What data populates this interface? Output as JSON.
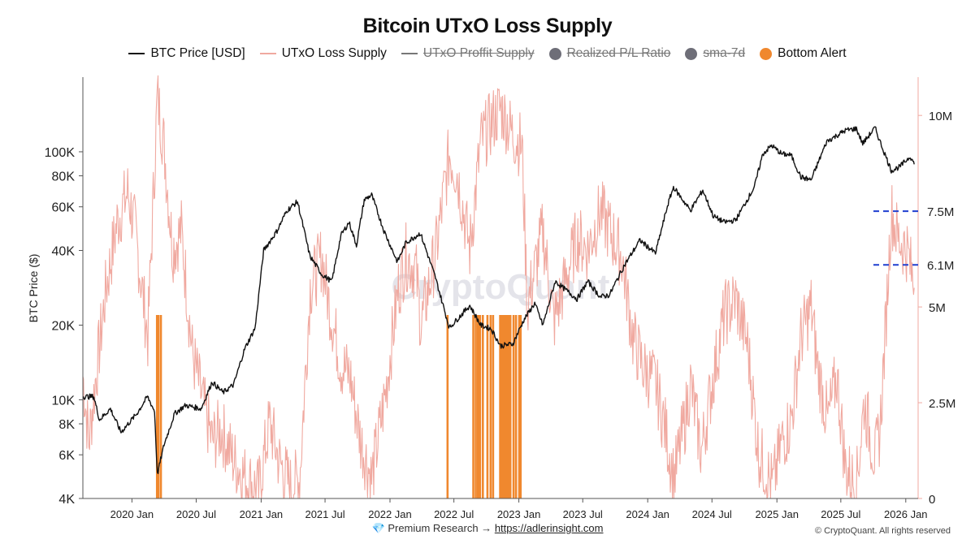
{
  "title": "Bitcoin UTxO Loss Supply",
  "legend": [
    {
      "label": "BTC Price [USD]",
      "kind": "line",
      "color": "#111111",
      "active": true
    },
    {
      "label": "UTxO Loss Supply",
      "kind": "line",
      "color": "#f0a9a0",
      "active": true
    },
    {
      "label": "UTxO Proffit Supply",
      "kind": "line",
      "color": "#777777",
      "active": false
    },
    {
      "label": "Realized P/L Ratio",
      "kind": "dot",
      "color": "#6e6e78",
      "active": false
    },
    {
      "label": "sma-7d",
      "kind": "dot",
      "color": "#6e6e78",
      "active": false
    },
    {
      "label": "Bottom Alert",
      "kind": "dot",
      "color": "#f0882e",
      "active": true
    }
  ],
  "footer": {
    "icon": "diamond-icon",
    "research_label": "Premium Research →",
    "link": "https://adlerinsight.com",
    "copyright": "© CryptoQuant. All rights reserved"
  },
  "chart_data": {
    "type": "line",
    "title": "Bitcoin UTxO Loss Supply",
    "ylabel": "BTC Price ($)",
    "y_scale": "log",
    "ylim": [
      4000,
      200000
    ],
    "y_ticks": [
      {
        "value": 4000,
        "label": "4K"
      },
      {
        "value": 6000,
        "label": "6K"
      },
      {
        "value": 8000,
        "label": "8K"
      },
      {
        "value": 10000,
        "label": "10K"
      },
      {
        "value": 20000,
        "label": "20K"
      },
      {
        "value": 40000,
        "label": "40K"
      },
      {
        "value": 60000,
        "label": "60K"
      },
      {
        "value": 80000,
        "label": "80K"
      },
      {
        "value": 100000,
        "label": "100K"
      }
    ],
    "y2lim": [
      0,
      11000000
    ],
    "y2_ticks": [
      {
        "value": 0,
        "label": "0"
      },
      {
        "value": 2500000,
        "label": "2.5M"
      },
      {
        "value": 5000000,
        "label": "5M"
      },
      {
        "value": 10000000,
        "label": "10M"
      }
    ],
    "reference_lines": [
      {
        "value": 7500000,
        "label": "7.5M",
        "color": "#1f3fd0"
      },
      {
        "value": 6100000,
        "label": "6.1M",
        "color": "#1f3fd0"
      }
    ],
    "xlim": [
      "2019-08-15",
      "2026-02-05"
    ],
    "x_ticks": [
      "2020 Jan",
      "2020 Jul",
      "2021 Jan",
      "2021 Jul",
      "2022 Jan",
      "2022 Jul",
      "2023 Jan",
      "2023 Jul",
      "2024 Jan",
      "2024 Jul",
      "2025 Jan",
      "2025 Jul",
      "2026 Jan"
    ],
    "x_tick_dates": [
      "2020-01-01",
      "2020-07-01",
      "2021-01-01",
      "2021-07-01",
      "2022-01-01",
      "2022-07-01",
      "2023-01-01",
      "2023-07-01",
      "2024-01-01",
      "2024-07-01",
      "2025-01-01",
      "2025-07-01",
      "2026-01-01"
    ],
    "grid": false,
    "legend_position": "top",
    "series": [
      {
        "name": "BTC Price [USD]",
        "axis": "left",
        "color": "#111111",
        "points": [
          [
            "2019-08-15",
            10300
          ],
          [
            "2019-09-15",
            10300
          ],
          [
            "2019-10-01",
            8300
          ],
          [
            "2019-11-01",
            9200
          ],
          [
            "2019-12-01",
            7400
          ],
          [
            "2020-01-15",
            8800
          ],
          [
            "2020-02-14",
            10300
          ],
          [
            "2020-03-05",
            9000
          ],
          [
            "2020-03-13",
            5000
          ],
          [
            "2020-04-01",
            6600
          ],
          [
            "2020-05-01",
            8800
          ],
          [
            "2020-06-01",
            9500
          ],
          [
            "2020-07-15",
            9200
          ],
          [
            "2020-08-15",
            11800
          ],
          [
            "2020-09-15",
            10700
          ],
          [
            "2020-10-15",
            11500
          ],
          [
            "2020-11-15",
            16000
          ],
          [
            "2020-12-15",
            19500
          ],
          [
            "2021-01-08",
            40000
          ],
          [
            "2021-02-15",
            48000
          ],
          [
            "2021-03-15",
            58000
          ],
          [
            "2021-04-14",
            63000
          ],
          [
            "2021-05-19",
            38000
          ],
          [
            "2021-06-22",
            32000
          ],
          [
            "2021-07-20",
            30000
          ],
          [
            "2021-08-15",
            46000
          ],
          [
            "2021-09-07",
            52000
          ],
          [
            "2021-09-28",
            42000
          ],
          [
            "2021-10-20",
            64000
          ],
          [
            "2021-11-10",
            67000
          ],
          [
            "2021-12-15",
            48000
          ],
          [
            "2022-01-22",
            36000
          ],
          [
            "2022-02-15",
            43000
          ],
          [
            "2022-03-28",
            47000
          ],
          [
            "2022-05-10",
            31000
          ],
          [
            "2022-06-18",
            19500
          ],
          [
            "2022-08-15",
            24000
          ],
          [
            "2022-09-15",
            20000
          ],
          [
            "2022-10-15",
            19300
          ],
          [
            "2022-11-10",
            16500
          ],
          [
            "2022-12-15",
            16800
          ],
          [
            "2023-01-15",
            21000
          ],
          [
            "2023-02-15",
            24500
          ],
          [
            "2023-03-10",
            20000
          ],
          [
            "2023-04-14",
            30000
          ],
          [
            "2023-06-15",
            25500
          ],
          [
            "2023-07-15",
            30000
          ],
          [
            "2023-08-20",
            26000
          ],
          [
            "2023-09-15",
            26500
          ],
          [
            "2023-10-25",
            34500
          ],
          [
            "2023-12-10",
            44000
          ],
          [
            "2024-01-23",
            39000
          ],
          [
            "2024-02-28",
            62000
          ],
          [
            "2024-03-14",
            72000
          ],
          [
            "2024-05-01",
            58000
          ],
          [
            "2024-06-05",
            70000
          ],
          [
            "2024-07-05",
            55000
          ],
          [
            "2024-08-05",
            52000
          ],
          [
            "2024-09-06",
            53000
          ],
          [
            "2024-10-29",
            72000
          ],
          [
            "2024-11-22",
            98000
          ],
          [
            "2024-12-17",
            106000
          ],
          [
            "2025-01-15",
            98000
          ],
          [
            "2025-02-10",
            97000
          ],
          [
            "2025-03-10",
            79000
          ],
          [
            "2025-04-08",
            77000
          ],
          [
            "2025-05-22",
            110000
          ],
          [
            "2025-07-14",
            122000
          ],
          [
            "2025-08-14",
            124000
          ],
          [
            "2025-09-01",
            108000
          ],
          [
            "2025-10-06",
            125000
          ],
          [
            "2025-10-20",
            110000
          ],
          [
            "2025-11-21",
            84000
          ],
          [
            "2025-12-15",
            87000
          ],
          [
            "2026-01-14",
            96000
          ],
          [
            "2026-01-25",
            89000
          ]
        ]
      },
      {
        "name": "UTxO Loss Supply",
        "axis": "right",
        "color": "#f0a9a0",
        "points": [
          [
            "2019-08-15",
            3200000
          ],
          [
            "2019-09-01",
            1500000
          ],
          [
            "2019-09-25",
            3500000
          ],
          [
            "2019-10-20",
            5500000
          ],
          [
            "2019-11-20",
            7200000
          ],
          [
            "2019-12-20",
            8000000
          ],
          [
            "2020-01-10",
            7000000
          ],
          [
            "2020-02-15",
            4200000
          ],
          [
            "2020-03-13",
            10500000
          ],
          [
            "2020-04-01",
            9200000
          ],
          [
            "2020-04-25",
            6500000
          ],
          [
            "2020-05-20",
            7000000
          ],
          [
            "2020-06-20",
            3800000
          ],
          [
            "2020-07-20",
            2500000
          ],
          [
            "2020-08-15",
            1500000
          ],
          [
            "2020-09-10",
            1800000
          ],
          [
            "2020-10-15",
            1000000
          ],
          [
            "2020-11-20",
            500000
          ],
          [
            "2020-12-25",
            200000
          ],
          [
            "2021-01-25",
            2000000
          ],
          [
            "2021-02-20",
            1000000
          ],
          [
            "2021-03-25",
            300000
          ],
          [
            "2021-04-20",
            500000
          ],
          [
            "2021-05-20",
            5500000
          ],
          [
            "2021-06-22",
            6300000
          ],
          [
            "2021-07-10",
            5200000
          ],
          [
            "2021-08-15",
            3500000
          ],
          [
            "2021-09-10",
            3200000
          ],
          [
            "2021-10-10",
            1500000
          ],
          [
            "2021-11-10",
            500000
          ],
          [
            "2021-12-20",
            2800000
          ],
          [
            "2022-01-25",
            5500000
          ],
          [
            "2022-02-15",
            6300000
          ],
          [
            "2022-03-15",
            6000000
          ],
          [
            "2022-03-30",
            4500000
          ],
          [
            "2022-05-12",
            6500000
          ],
          [
            "2022-06-18",
            9000000
          ],
          [
            "2022-07-10",
            8500000
          ],
          [
            "2022-08-15",
            6500000
          ],
          [
            "2022-09-15",
            9300000
          ],
          [
            "2022-10-15",
            9800000
          ],
          [
            "2022-11-10",
            10200000
          ],
          [
            "2022-12-15",
            9500000
          ],
          [
            "2023-01-10",
            9200000
          ],
          [
            "2023-01-25",
            5000000
          ],
          [
            "2023-03-10",
            7000000
          ],
          [
            "2023-04-10",
            4600000
          ],
          [
            "2023-06-15",
            6800000
          ],
          [
            "2023-07-15",
            6500000
          ],
          [
            "2023-08-20",
            7500000
          ],
          [
            "2023-09-15",
            7000000
          ],
          [
            "2023-10-20",
            6300000
          ],
          [
            "2023-11-20",
            4200000
          ],
          [
            "2023-12-20",
            3400000
          ],
          [
            "2024-01-23",
            3000000
          ],
          [
            "2024-02-20",
            1800000
          ],
          [
            "2024-03-15",
            500000
          ],
          [
            "2024-04-15",
            2000000
          ],
          [
            "2024-05-01",
            3000000
          ],
          [
            "2024-06-01",
            1200000
          ],
          [
            "2024-07-05",
            3200000
          ],
          [
            "2024-08-05",
            4800000
          ],
          [
            "2024-09-06",
            5200000
          ],
          [
            "2024-10-10",
            4000000
          ],
          [
            "2024-11-10",
            1200000
          ],
          [
            "2024-12-20",
            300000
          ],
          [
            "2025-01-15",
            1500000
          ],
          [
            "2025-02-10",
            2000000
          ],
          [
            "2025-03-10",
            4200000
          ],
          [
            "2025-04-08",
            5000000
          ],
          [
            "2025-04-25",
            3500000
          ],
          [
            "2025-05-25",
            2000000
          ],
          [
            "2025-06-20",
            3200000
          ],
          [
            "2025-07-14",
            800000
          ],
          [
            "2025-08-14",
            300000
          ],
          [
            "2025-09-05",
            2500000
          ],
          [
            "2025-10-06",
            1000000
          ],
          [
            "2025-10-20",
            1800000
          ],
          [
            "2025-11-05",
            4500000
          ],
          [
            "2025-11-21",
            7500000
          ],
          [
            "2025-12-10",
            6800000
          ],
          [
            "2026-01-05",
            6500000
          ],
          [
            "2026-01-25",
            5500000
          ]
        ]
      },
      {
        "name": "Bottom Alert",
        "kind": "bars",
        "color": "#f0882e",
        "dates": [
          "2020-03-12",
          "2020-03-13",
          "2020-03-14",
          "2020-03-16",
          "2020-03-23",
          "2022-06-13",
          "2022-08-25",
          "2022-09-01",
          "2022-09-07",
          "2022-09-13",
          "2022-09-21",
          "2022-10-04",
          "2022-10-13",
          "2022-10-20",
          "2022-11-09",
          "2022-11-12",
          "2022-11-15",
          "2022-11-18",
          "2022-11-21",
          "2022-11-24",
          "2022-11-27",
          "2022-11-30",
          "2022-12-04",
          "2022-12-08",
          "2022-12-17",
          "2022-12-24",
          "2023-01-02",
          "2023-01-06"
        ]
      }
    ]
  }
}
